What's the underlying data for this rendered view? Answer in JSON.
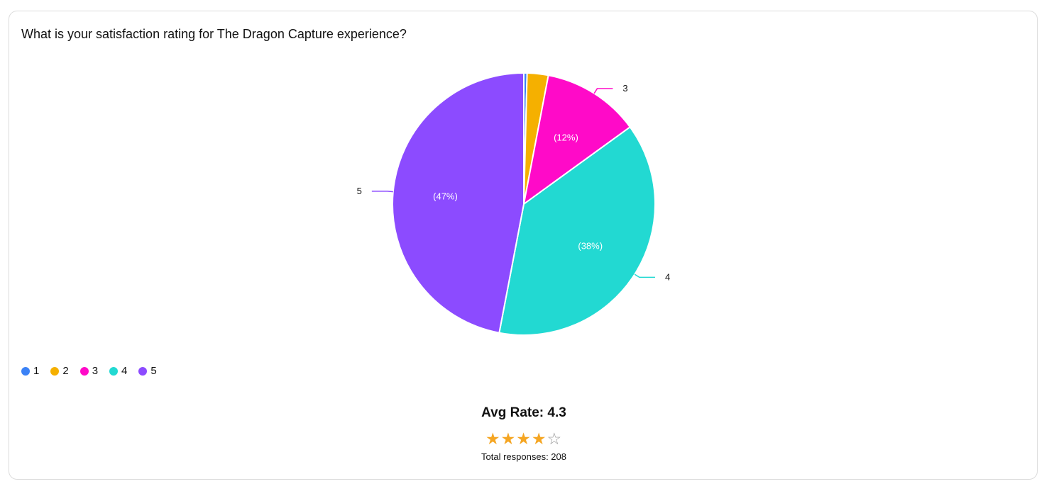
{
  "question": "What is your satisfaction rating for The Dragon Capture experience?",
  "chart_data": {
    "type": "pie",
    "categories": [
      "1",
      "2",
      "3",
      "4",
      "5"
    ],
    "values": [
      0.4,
      2.6,
      12,
      38,
      47
    ],
    "colors": [
      "#3b82f6",
      "#f5b000",
      "#ff0ac8",
      "#22d9d2",
      "#8c4bff"
    ],
    "slice_labels": [
      "",
      "",
      "(12%)",
      "(38%)",
      "(47%)"
    ],
    "callout_labels": [
      "",
      "",
      "3",
      "4",
      "5"
    ],
    "legend_placement": "bottom-left"
  },
  "legend": [
    {
      "label": "1",
      "color": "#3b82f6"
    },
    {
      "label": "2",
      "color": "#f5b000"
    },
    {
      "label": "3",
      "color": "#ff0ac8"
    },
    {
      "label": "4",
      "color": "#22d9d2"
    },
    {
      "label": "5",
      "color": "#8c4bff"
    }
  ],
  "summary": {
    "avg_rate_text": "Avg Rate: 4.3",
    "avg_rate_value": 4.3,
    "stars_filled": 4,
    "stars_total": 5,
    "total_responses_text": "Total responses: 208"
  }
}
